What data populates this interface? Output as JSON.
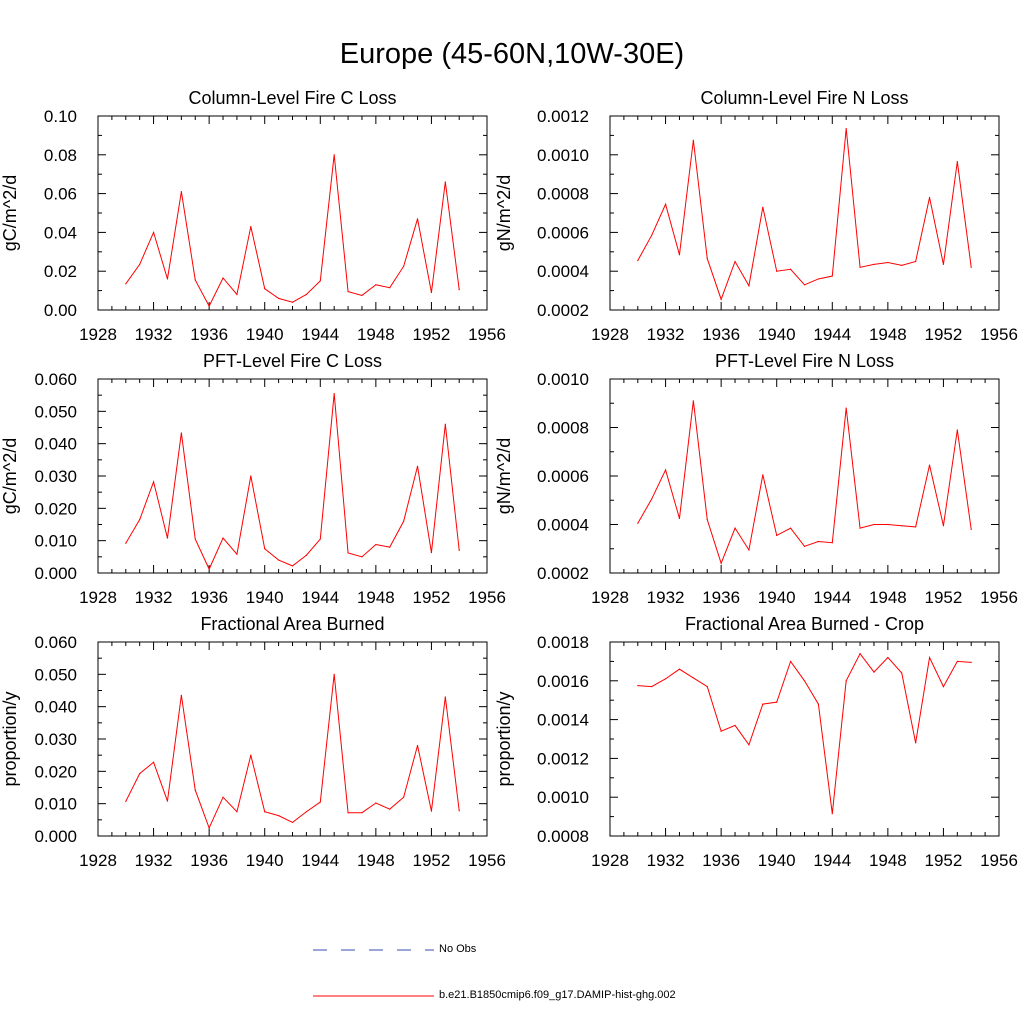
{
  "page": {
    "title": "Europe (45-60N,10W-30E)"
  },
  "legend": {
    "entries": [
      {
        "label": "No Obs",
        "color": "#3a4fb3",
        "style": "dashed"
      },
      {
        "label": "b.e21.B1850cmip6.f09_g17.DAMIP-hist-ghg.002",
        "color": "#ff0000",
        "style": "solid"
      }
    ]
  },
  "chart_data": [
    {
      "type": "line",
      "title": "Column-Level Fire C Loss",
      "ylabel": "gC/m^2/d",
      "xlim": [
        1928,
        1956
      ],
      "ylim": [
        0.0,
        0.1
      ],
      "xticks": [
        1928,
        1932,
        1936,
        1940,
        1944,
        1948,
        1952,
        1956
      ],
      "yticks": [
        0.0,
        0.02,
        0.04,
        0.06,
        0.08,
        0.1
      ],
      "ytick_labels": [
        "0.00",
        "0.02",
        "0.04",
        "0.06",
        "0.08",
        "0.10"
      ],
      "x": [
        1930,
        1931,
        1932,
        1933,
        1934,
        1935,
        1936,
        1937,
        1938,
        1939,
        1940,
        1941,
        1942,
        1943,
        1944,
        1945,
        1946,
        1947,
        1948,
        1949,
        1950,
        1951,
        1952,
        1953,
        1954
      ],
      "series": [
        {
          "color": "#ff0000",
          "values": [
            0.0135,
            0.0235,
            0.04,
            0.016,
            0.061,
            0.0155,
            0.002,
            0.0165,
            0.008,
            0.043,
            0.011,
            0.006,
            0.004,
            0.008,
            0.015,
            0.08,
            0.0095,
            0.0075,
            0.013,
            0.0115,
            0.0225,
            0.047,
            0.009,
            0.066,
            0.0105
          ]
        }
      ]
    },
    {
      "type": "line",
      "title": "Column-Level Fire N Loss",
      "ylabel": "gN/m^2/d",
      "xlim": [
        1928,
        1956
      ],
      "ylim": [
        0.0002,
        0.0012
      ],
      "xticks": [
        1928,
        1932,
        1936,
        1940,
        1944,
        1948,
        1952,
        1956
      ],
      "yticks": [
        0.0002,
        0.0004,
        0.0006,
        0.0008,
        0.001,
        0.0012
      ],
      "ytick_labels": [
        "0.0002",
        "0.0004",
        "0.0006",
        "0.0008",
        "0.0010",
        "0.0012"
      ],
      "x": [
        1930,
        1931,
        1932,
        1933,
        1934,
        1935,
        1936,
        1937,
        1938,
        1939,
        1940,
        1941,
        1942,
        1943,
        1944,
        1945,
        1946,
        1947,
        1948,
        1949,
        1950,
        1951,
        1952,
        1953,
        1954
      ],
      "series": [
        {
          "color": "#ff0000",
          "values": [
            0.000455,
            0.000585,
            0.000745,
            0.000485,
            0.001075,
            0.000465,
            0.000255,
            0.00045,
            0.000325,
            0.00073,
            0.0004,
            0.00041,
            0.00033,
            0.00036,
            0.000375,
            0.001135,
            0.00042,
            0.000435,
            0.000445,
            0.00043,
            0.00045,
            0.00078,
            0.000435,
            0.000965,
            0.00042
          ]
        }
      ]
    },
    {
      "type": "line",
      "title": "PFT-Level Fire C Loss",
      "ylabel": "gC/m^2/d",
      "xlim": [
        1928,
        1956
      ],
      "ylim": [
        0.0,
        0.06
      ],
      "xticks": [
        1928,
        1932,
        1936,
        1940,
        1944,
        1948,
        1952,
        1956
      ],
      "yticks": [
        0.0,
        0.01,
        0.02,
        0.03,
        0.04,
        0.05,
        0.06
      ],
      "ytick_labels": [
        "0.000",
        "0.010",
        "0.020",
        "0.030",
        "0.040",
        "0.050",
        "0.060"
      ],
      "x": [
        1930,
        1931,
        1932,
        1933,
        1934,
        1935,
        1936,
        1937,
        1938,
        1939,
        1940,
        1941,
        1942,
        1943,
        1944,
        1945,
        1946,
        1947,
        1948,
        1949,
        1950,
        1951,
        1952,
        1953,
        1954
      ],
      "series": [
        {
          "color": "#ff0000",
          "values": [
            0.0092,
            0.0165,
            0.0282,
            0.0108,
            0.0433,
            0.0105,
            0.0012,
            0.0108,
            0.0058,
            0.03,
            0.0075,
            0.004,
            0.0022,
            0.0055,
            0.0105,
            0.0555,
            0.0062,
            0.005,
            0.0088,
            0.008,
            0.016,
            0.033,
            0.0063,
            0.046,
            0.007
          ]
        }
      ]
    },
    {
      "type": "line",
      "title": "PFT-Level Fire N Loss",
      "ylabel": "gN/m^2/d",
      "xlim": [
        1928,
        1956
      ],
      "ylim": [
        0.0002,
        0.001
      ],
      "xticks": [
        1928,
        1932,
        1936,
        1940,
        1944,
        1948,
        1952,
        1956
      ],
      "yticks": [
        0.0002,
        0.0004,
        0.0006,
        0.0008,
        0.001
      ],
      "ytick_labels": [
        "0.0002",
        "0.0004",
        "0.0006",
        "0.0008",
        "0.0010"
      ],
      "x": [
        1930,
        1931,
        1932,
        1933,
        1934,
        1935,
        1936,
        1937,
        1938,
        1939,
        1940,
        1941,
        1942,
        1943,
        1944,
        1945,
        1946,
        1947,
        1948,
        1949,
        1950,
        1951,
        1952,
        1953,
        1954
      ],
      "series": [
        {
          "color": "#ff0000",
          "values": [
            0.000405,
            0.000505,
            0.000625,
            0.000425,
            0.00091,
            0.00042,
            0.00024,
            0.000385,
            0.000295,
            0.000605,
            0.000355,
            0.000385,
            0.00031,
            0.00033,
            0.000325,
            0.00088,
            0.000385,
            0.0004,
            0.0004,
            0.000395,
            0.00039,
            0.000645,
            0.000395,
            0.00079,
            0.00038
          ]
        }
      ]
    },
    {
      "type": "line",
      "title": "Fractional Area Burned",
      "ylabel": "proportion/y",
      "xlim": [
        1928,
        1956
      ],
      "ylim": [
        0.0,
        0.06
      ],
      "xticks": [
        1928,
        1932,
        1936,
        1940,
        1944,
        1948,
        1952,
        1956
      ],
      "yticks": [
        0.0,
        0.01,
        0.02,
        0.03,
        0.04,
        0.05,
        0.06
      ],
      "ytick_labels": [
        "0.000",
        "0.010",
        "0.020",
        "0.030",
        "0.040",
        "0.050",
        "0.060"
      ],
      "x": [
        1930,
        1931,
        1932,
        1933,
        1934,
        1935,
        1936,
        1937,
        1938,
        1939,
        1940,
        1941,
        1942,
        1943,
        1944,
        1945,
        1946,
        1947,
        1948,
        1949,
        1950,
        1951,
        1952,
        1953,
        1954
      ],
      "series": [
        {
          "color": "#ff0000",
          "values": [
            0.0107,
            0.0193,
            0.0228,
            0.0108,
            0.0435,
            0.0142,
            0.0025,
            0.012,
            0.0075,
            0.025,
            0.0075,
            0.0063,
            0.0042,
            0.0075,
            0.0105,
            0.05,
            0.0072,
            0.0072,
            0.0102,
            0.0083,
            0.012,
            0.028,
            0.0077,
            0.043,
            0.0078
          ]
        }
      ]
    },
    {
      "type": "line",
      "title": "Fractional Area Burned - Crop",
      "ylabel": "proportion/y",
      "xlim": [
        1928,
        1956
      ],
      "ylim": [
        0.0008,
        0.0018
      ],
      "xticks": [
        1928,
        1932,
        1936,
        1940,
        1944,
        1948,
        1952,
        1956
      ],
      "yticks": [
        0.0008,
        0.001,
        0.0012,
        0.0014,
        0.0016,
        0.0018
      ],
      "ytick_labels": [
        "0.0008",
        "0.0010",
        "0.0012",
        "0.0014",
        "0.0016",
        "0.0018"
      ],
      "x": [
        1930,
        1931,
        1932,
        1933,
        1934,
        1935,
        1936,
        1937,
        1938,
        1939,
        1940,
        1941,
        1942,
        1943,
        1944,
        1945,
        1946,
        1947,
        1948,
        1949,
        1950,
        1951,
        1952,
        1953,
        1954
      ],
      "series": [
        {
          "color": "#ff0000",
          "values": [
            0.001575,
            0.00157,
            0.00161,
            0.00166,
            0.001615,
            0.00157,
            0.00134,
            0.00137,
            0.00127,
            0.00148,
            0.00149,
            0.0017,
            0.0016,
            0.00148,
            0.000915,
            0.0016,
            0.00174,
            0.001645,
            0.00172,
            0.00164,
            0.00128,
            0.00172,
            0.00157,
            0.0017,
            0.001695
          ]
        }
      ]
    }
  ]
}
